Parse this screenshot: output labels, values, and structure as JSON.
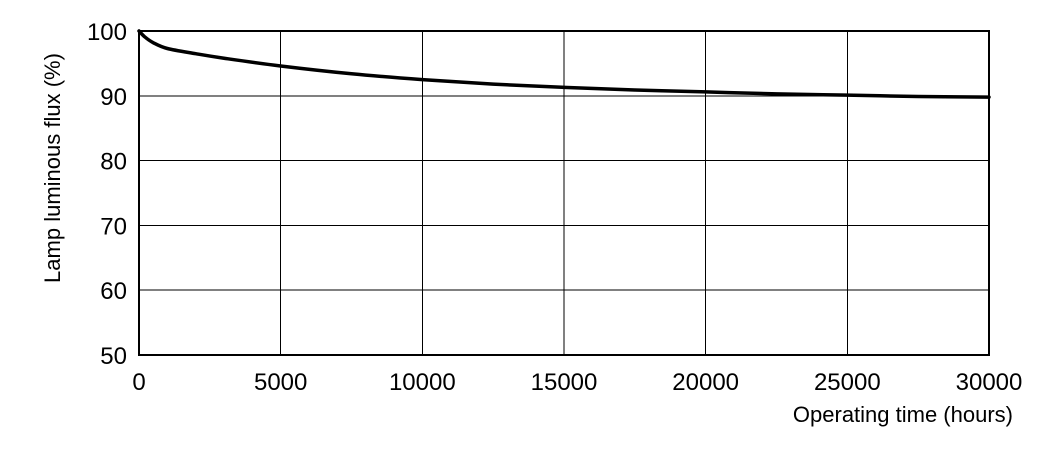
{
  "chart_data": {
    "type": "line",
    "title": "",
    "xlabel": "Operating time (hours)",
    "ylabel": "Lamp luminous flux (%)",
    "xlim": [
      0,
      30000
    ],
    "ylim": [
      50,
      100
    ],
    "x_ticks": [
      0,
      5000,
      10000,
      15000,
      20000,
      25000,
      30000
    ],
    "x_tick_labels": [
      "0",
      "5000",
      "10000",
      "15000",
      "20000",
      "25000",
      "30000"
    ],
    "y_ticks": [
      50,
      60,
      70,
      80,
      90,
      100
    ],
    "y_tick_labels": [
      "50",
      "60",
      "70",
      "80",
      "90",
      "100"
    ],
    "grid": true,
    "series": [
      {
        "name": "",
        "color": "#000000",
        "x": [
          0,
          200,
          500,
          1000,
          2000,
          3000,
          5000,
          7500,
          10000,
          12500,
          15000,
          17500,
          20000,
          22500,
          25000,
          27500,
          30000
        ],
        "y": [
          100,
          99.1,
          98.2,
          97.3,
          96.5,
          95.8,
          94.6,
          93.4,
          92.5,
          91.8,
          91.3,
          90.9,
          90.6,
          90.3,
          90.1,
          89.9,
          89.8
        ]
      }
    ]
  }
}
